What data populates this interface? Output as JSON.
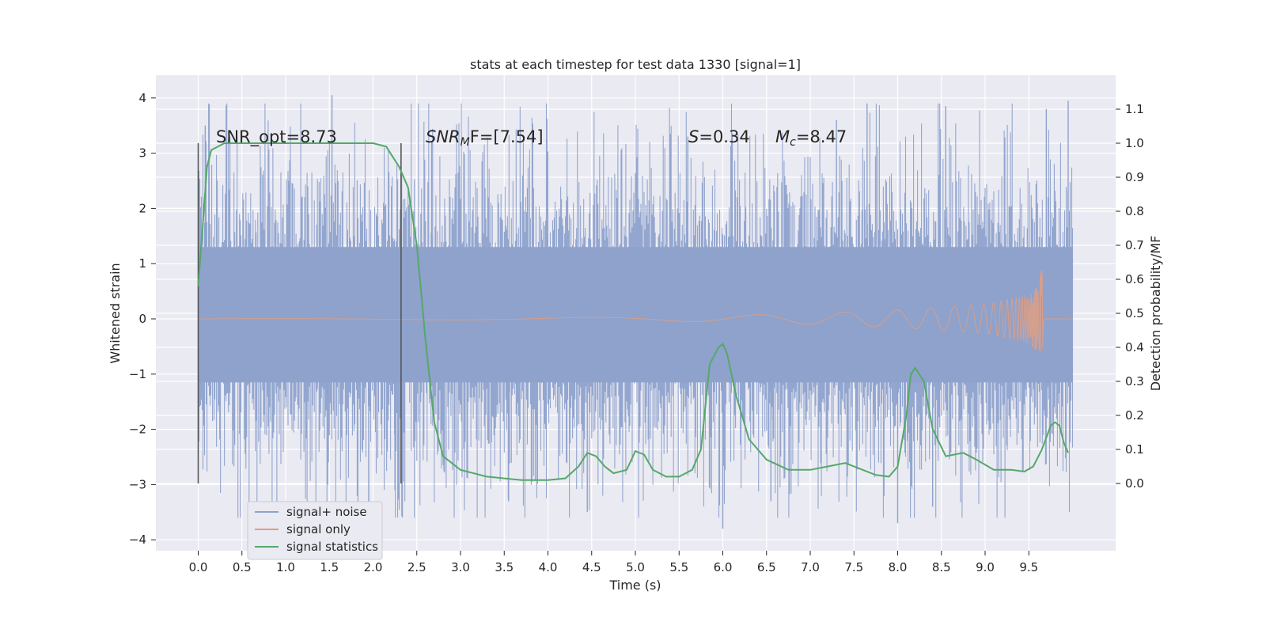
{
  "chart_data": {
    "type": "line",
    "title": "stats at each timestep for test data 1330 [signal=1]",
    "xlabel": "Time (s)",
    "ylabel": "Whitened strain",
    "y2label": "Detection probability/MF",
    "xlim": [
      -0.5,
      10.5
    ],
    "ylim": [
      -4.2,
      4.4
    ],
    "y2lim": [
      -0.2,
      1.2
    ],
    "xticks": [
      "0.0",
      "0.5",
      "1.0",
      "1.5",
      "2.0",
      "2.5",
      "3.0",
      "3.5",
      "4.0",
      "4.5",
      "5.0",
      "5.5",
      "6.0",
      "6.5",
      "7.0",
      "7.5",
      "8.0",
      "8.5",
      "9.0",
      "9.5"
    ],
    "yticks": [
      "4",
      "3",
      "2",
      "1",
      "0",
      "−1",
      "−2",
      "−3",
      "−4"
    ],
    "y2ticks": [
      "1.1",
      "1.0",
      "0.9",
      "0.8",
      "0.7",
      "0.6",
      "0.5",
      "0.4",
      "0.3",
      "0.2",
      "0.1",
      "0.0"
    ],
    "grid": true,
    "legend_position": "lower-left",
    "legend": [
      "signal+ noise",
      "signal only",
      "signal statistics"
    ],
    "colors": {
      "noise": "#8ea2cc",
      "signal": "#dd9e86",
      "stats": "#55a868",
      "background": "#eaeaf2",
      "grid": "#ffffff",
      "vline": "#555555"
    },
    "annotations": {
      "snr_opt": "SNR_opt=8.73",
      "snr_mf": "SNR",
      "snr_mf_sub": "M",
      "snr_mf_rest": "F=[7.54]",
      "s_label": "S",
      "s_value": "=0.34",
      "mc_label": "M",
      "mc_sub": "c",
      "mc_value": "=8.47"
    },
    "vertical_lines_x": [
      0.0,
      2.32
    ],
    "series": [
      {
        "name": "signal+ noise",
        "axis": "left",
        "x_range": [
          0.0,
          10.0
        ],
        "envelope_typical": [
          -1.7,
          1.7
        ],
        "extremes": [
          {
            "x": 0.08,
            "y": 3.5
          },
          {
            "x": 1.53,
            "y": 4.05
          },
          {
            "x": 1.48,
            "y": -3.0
          },
          {
            "x": 2.67,
            "y": 3.2
          },
          {
            "x": 3.55,
            "y": -3.3
          },
          {
            "x": 4.45,
            "y": -3.5
          },
          {
            "x": 5.6,
            "y": 3.3
          },
          {
            "x": 6.0,
            "y": -3.8
          },
          {
            "x": 7.65,
            "y": 3.9
          },
          {
            "x": 8.55,
            "y": 3.85
          },
          {
            "x": 8.0,
            "y": -3.7
          },
          {
            "x": 8.4,
            "y": -3.4
          },
          {
            "x": 9.7,
            "y": 3.8
          },
          {
            "x": 9.95,
            "y": 3.95
          },
          {
            "x": 7.3,
            "y": 3.6
          },
          {
            "x": 1.95,
            "y": -3.3
          },
          {
            "x": 6.55,
            "y": -3.3
          },
          {
            "x": 2.25,
            "y": -3.1
          }
        ]
      },
      {
        "name": "signal only",
        "axis": "left",
        "amplitude_by_time": [
          [
            0.0,
            0.0
          ],
          [
            5.0,
            0.03
          ],
          [
            6.0,
            0.06
          ],
          [
            7.0,
            0.1
          ],
          [
            8.0,
            0.16
          ],
          [
            9.0,
            0.26
          ],
          [
            9.5,
            0.45
          ],
          [
            9.6,
            0.6
          ],
          [
            9.65,
            0.95
          ],
          [
            9.67,
            0.0
          ],
          [
            10.0,
            0.0
          ]
        ]
      },
      {
        "name": "signal statistics",
        "axis": "right",
        "x": [
          0.0,
          0.05,
          0.1,
          0.15,
          0.3,
          0.6,
          1.0,
          1.5,
          2.0,
          2.15,
          2.3,
          2.4,
          2.5,
          2.6,
          2.7,
          2.8,
          3.0,
          3.3,
          3.7,
          4.0,
          4.2,
          4.35,
          4.45,
          4.55,
          4.65,
          4.75,
          4.9,
          5.0,
          5.1,
          5.2,
          5.35,
          5.5,
          5.65,
          5.75,
          5.85,
          5.95,
          6.0,
          6.05,
          6.15,
          6.3,
          6.5,
          6.75,
          7.0,
          7.2,
          7.4,
          7.6,
          7.75,
          7.9,
          8.0,
          8.1,
          8.15,
          8.2,
          8.3,
          8.4,
          8.55,
          8.75,
          8.9,
          9.1,
          9.3,
          9.45,
          9.55,
          9.65,
          9.75,
          9.8,
          9.85,
          9.9,
          9.95
        ],
        "y": [
          0.58,
          0.75,
          0.93,
          0.98,
          1.0,
          1.0,
          1.0,
          1.0,
          1.0,
          0.99,
          0.93,
          0.87,
          0.7,
          0.42,
          0.18,
          0.08,
          0.04,
          0.02,
          0.01,
          0.01,
          0.015,
          0.05,
          0.09,
          0.08,
          0.05,
          0.03,
          0.04,
          0.095,
          0.085,
          0.04,
          0.02,
          0.02,
          0.04,
          0.1,
          0.35,
          0.4,
          0.41,
          0.38,
          0.26,
          0.13,
          0.07,
          0.04,
          0.04,
          0.05,
          0.06,
          0.04,
          0.025,
          0.02,
          0.05,
          0.2,
          0.32,
          0.34,
          0.3,
          0.16,
          0.08,
          0.09,
          0.07,
          0.04,
          0.04,
          0.035,
          0.05,
          0.1,
          0.17,
          0.18,
          0.17,
          0.12,
          0.09
        ]
      }
    ]
  }
}
